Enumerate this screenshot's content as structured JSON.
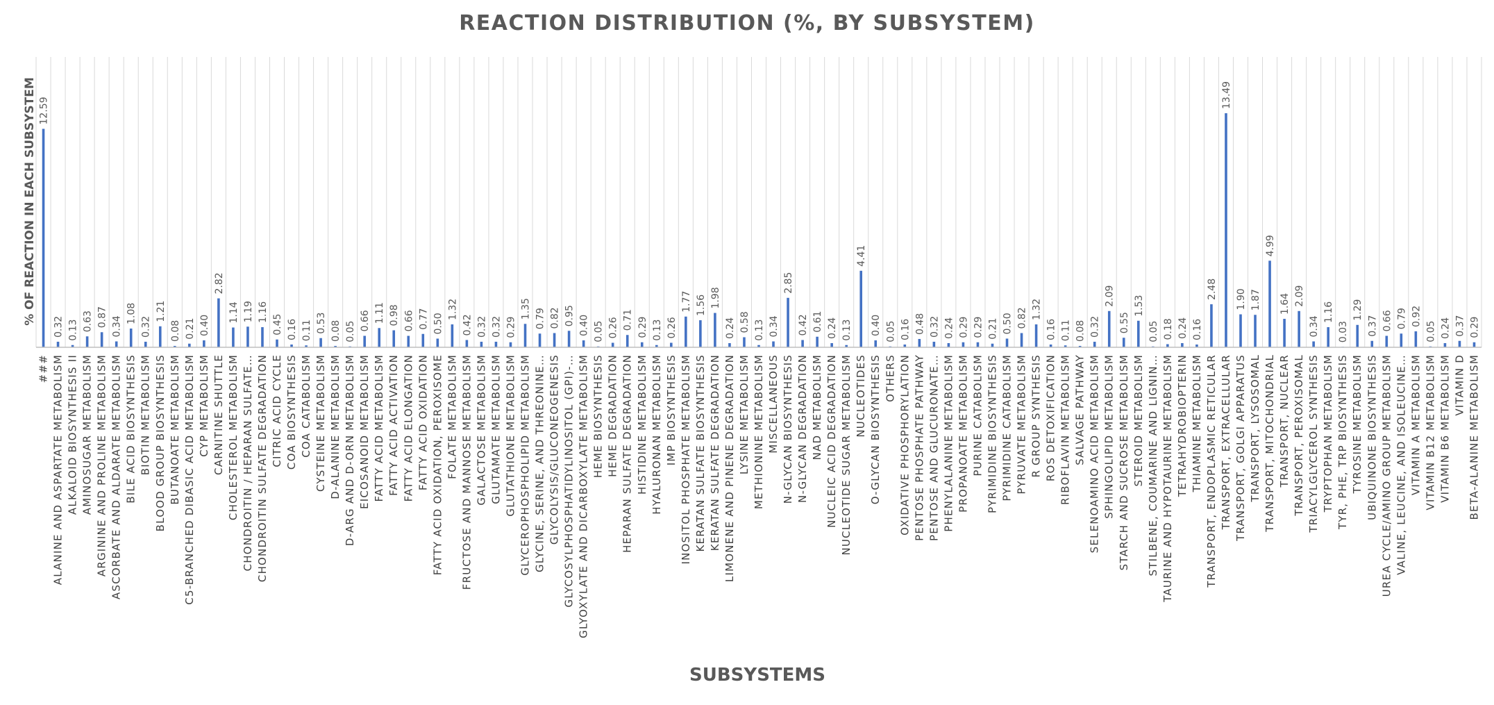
{
  "chart_data": {
    "type": "bar",
    "title": "REACTION DISTRIBUTION (%, BY SUBSYSTEM)",
    "xlabel": "SUBSYSTEMS",
    "ylabel": "% OF REACTION IN EACH SUBSYSTEM",
    "ylim": [
      0,
      14
    ],
    "grid": "vertical",
    "legend": "none",
    "bar_color": "#4472C4",
    "grid_color": "#D9D9D9",
    "categories": [
      "###",
      "ALANINE AND ASPARTATE METABOLISM",
      "ALKALOID BIOSYNTHESIS II",
      "AMINOSUGAR METABOLISM",
      "ARGININE AND PROLINE METABOLISM",
      "ASCORBATE AND ALDARATE METABOLISM",
      "BILE ACID BIOSYNTHESIS",
      "BIOTIN METABOLISM",
      "BLOOD GROUP BIOSYNTHESIS",
      "BUTANOATE METABOLISM",
      "C5-BRANCHED DIBASIC ACID METABOLISM",
      "CYP METABOLISM",
      "CARNITINE SHUTTLE",
      "CHOLESTEROL METABOLISM",
      "CHONDROITIN / HEPARAN SULFATE…",
      "CHONDROITIN SULFATE DEGRADATION",
      "CITRIC ACID CYCLE",
      "COA BIOSYNTHESIS",
      "COA CATABOLISM",
      "CYSTEINE METABOLISM",
      "D-ALANINE METABOLISM",
      "D-ARG AND D-ORN METABOLISM",
      "EICOSANOID METABOLISM",
      "FATTY ACID METABOLISM",
      "FATTY ACID ACTIVATION",
      "FATTY ACID ELONGATION",
      "FATTY ACID OXIDATION",
      "FATTY ACID OXIDATION, PEROXISOME",
      "FOLATE METABOLISM",
      "FRUCTOSE AND MANNOSE METABOLISM",
      "GALACTOSE METABOLISM",
      "GLUTAMATE METABOLISM",
      "GLUTATHIONE METABOLISM",
      "GLYCEROPHOSPHOLIPID METABOLISM",
      "GLYCINE, SERINE, AND THREONINE…",
      "GLYCOLYSIS/GLUCONEOGENESIS",
      "GLYCOSYLPHOSPHATIDYLINOSITOL (GPI)-…",
      "GLYOXYLATE AND DICARBOXYLATE METABOLISM",
      "HEME BIOSYNTHESIS",
      "HEME DEGRADATION",
      "HEPARAN SULFATE DEGRADATION",
      "HISTIDINE METABOLISM",
      "HYALURONAN METABOLISM",
      "IMP BIOSYNTHESIS",
      "INOSITOL PHOSPHATE METABOLISM",
      "KERATAN SULFATE BIOSYNTHESIS",
      "KERATAN SULFATE DEGRADATION",
      "LIMONENE AND PINENE DEGRADATION",
      "LYSINE METABOLISM",
      "METHIONINE METABOLISM",
      "MISCELLANEOUS",
      "N-GLYCAN BIOSYNTHESIS",
      "N-GLYCAN DEGRADATION",
      "NAD METABOLISM",
      "NUCLEIC ACID DEGRADATION",
      "NUCLEOTIDE SUGAR METABOLISM",
      "NUCLEOTIDES",
      "O-GLYCAN BIOSYNTHESIS",
      "OTHERS",
      "OXIDATIVE PHOSPHORYLATION",
      "PENTOSE PHOSPHATE PATHWAY",
      "PENTOSE AND GLUCURONATE…",
      "PHENYLALANINE METABOLISM",
      "PROPANOATE METABOLISM",
      "PURINE CATABOLISM",
      "PYRIMIDINE BIOSYNTHESIS",
      "PYRIMIDINE CATABOLISM",
      "PYRUVATE METABOLISM",
      "R GROUP SYNTHESIS",
      "ROS DETOXIFICATION",
      "RIBOFLAVIN METABOLISM",
      "SALVAGE PATHWAY",
      "SELENOAMINO ACID METABOLISM",
      "SPHINGOLIPID METABOLISM",
      "STARCH AND SUCROSE METABOLISM",
      "STEROID METABOLISM",
      "STILBENE, COUMARINE AND LIGNIN…",
      "TAURINE AND HYPOTAURINE METABOLISM",
      "TETRAHYDROBIOPTERIN",
      "THIAMINE METABOLISM",
      "TRANSPORT, ENDOPLASMIC RETICULAR",
      "TRANSPORT, EXTRACELLULAR",
      "TRANSPORT, GOLGI APPARATUS",
      "TRANSPORT, LYSOSOMAL",
      "TRANSPORT, MITOCHONDRIAL",
      "TRANSPORT, NUCLEAR",
      "TRANSPORT, PEROXISOMAL",
      "TRIACYLGLYCEROL SYNTHESIS",
      "TRYPTOPHAN METABOLISM",
      "TYR, PHE, TRP BIOSYNTHESIS",
      "TYROSINE METABOLISM",
      "UBIQUINONE BIOSYNTHESIS",
      "UREA CYCLE/AMINO GROUP METABOLISM",
      "VALINE, LEUCINE, AND ISOLEUCINE…",
      "VITAMIN A METABOLISM",
      "VITAMIN B12 METABOLISM",
      "VITAMIN B6 METABOLISM",
      "VITAMIN D",
      "BETA-ALANINE METABOLISM"
    ],
    "values": [
      12.59,
      0.32,
      0.13,
      0.63,
      0.87,
      0.34,
      1.08,
      0.32,
      1.21,
      0.08,
      0.21,
      0.4,
      2.82,
      1.14,
      1.19,
      1.16,
      0.45,
      0.16,
      0.11,
      0.53,
      0.08,
      0.05,
      0.66,
      1.11,
      0.98,
      0.66,
      0.77,
      0.5,
      1.32,
      0.42,
      0.32,
      0.32,
      0.29,
      1.35,
      0.79,
      0.82,
      0.95,
      0.4,
      0.05,
      0.26,
      0.71,
      0.29,
      0.13,
      0.26,
      1.77,
      1.56,
      1.98,
      0.24,
      0.58,
      0.13,
      0.34,
      2.85,
      0.42,
      0.61,
      0.24,
      0.13,
      4.41,
      0.4,
      0.05,
      0.16,
      0.48,
      0.32,
      0.24,
      0.29,
      0.29,
      0.21,
      0.5,
      0.82,
      1.32,
      0.16,
      0.11,
      0.08,
      0.32,
      2.09,
      0.55,
      1.53,
      0.05,
      0.18,
      0.24,
      0.16,
      2.48,
      13.49,
      1.9,
      1.87,
      4.99,
      1.64,
      2.09,
      0.34,
      1.16,
      0.03,
      1.29,
      0.37,
      0.66,
      0.79,
      0.92,
      0.05,
      0.24,
      0.37,
      0.29
    ],
    "value_labels": [
      "12.59",
      "0.32",
      "0.13",
      "0.63",
      "0.87",
      "0.34",
      "1.08",
      "0.32",
      "1.21",
      "0.08",
      "0.21",
      "0.40",
      "2.82",
      "1.14",
      "1.19",
      "1.16",
      "0.45",
      "0.16",
      "0.11",
      "0.53",
      "0.08",
      "0.05",
      "0.66",
      "1.11",
      "0.98",
      "0.66",
      "0.77",
      "0.50",
      "1.32",
      "0.42",
      "0.32",
      "0.32",
      "0.29",
      "1.35",
      "0.79",
      "0.82",
      "0.95",
      "0.40",
      "0.05",
      "0.26",
      "0.71",
      "0.29",
      "0.13",
      "0.26",
      "1.77",
      "1.56",
      "1.98",
      "0.24",
      "0.58",
      "0.13",
      "0.34",
      "2.85",
      "0.42",
      "0.61",
      "0.24",
      "0.13",
      "4.41",
      "0.40",
      "0.05",
      "0.16",
      "0.48",
      "0.32",
      "0.24",
      "0.29",
      "0.29",
      "0.21",
      "0.50",
      "0.82",
      "1.32",
      "0.16",
      "0.11",
      "0.08",
      "0.32",
      "2.09",
      "0.55",
      "1.53",
      "0.05",
      "0.18",
      "0.24",
      "0.16",
      "2.48",
      "13.49",
      "1.90",
      "1.87",
      "4.99",
      "1.64",
      "2.09",
      "0.34",
      "1.16",
      "0.03",
      "1.29",
      "0.37",
      "0.66",
      "0.79",
      "0.92",
      "0.05",
      "0.24",
      "0.37",
      "0.29"
    ]
  }
}
